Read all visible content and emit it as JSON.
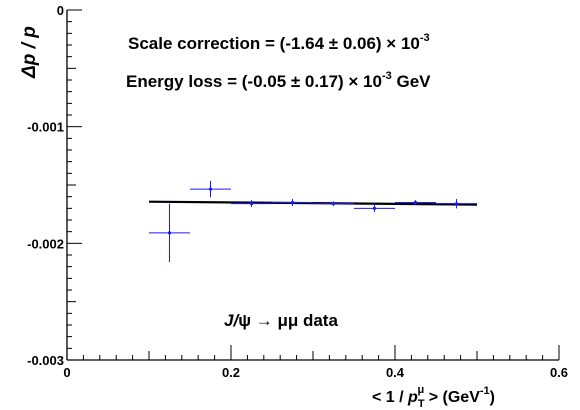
{
  "chart_data": {
    "type": "scatter",
    "ylabel": "Δp / p",
    "xlabel": {
      "prefix": "< 1 / ",
      "var": "p",
      "sub": "T",
      "sup": "μ",
      "suffix": " > (GeV",
      "unit_sup": "-1",
      "close": ")"
    },
    "xlim": [
      0,
      0.6
    ],
    "ylim": [
      -0.003,
      0
    ],
    "x_ticks": [
      0,
      0.2,
      0.4,
      0.6
    ],
    "x_tick_labels": [
      "0",
      "0.2",
      "0.4",
      "0.6"
    ],
    "y_ticks": [
      0,
      -0.001,
      -0.002,
      -0.003
    ],
    "y_tick_labels": [
      "0",
      "-0.001",
      "-0.002",
      "-0.003"
    ],
    "grid": false,
    "points": [
      {
        "x": 0.125,
        "xerr": 0.025,
        "y": -0.00191,
        "yerr": 0.00025
      },
      {
        "x": 0.175,
        "xerr": 0.025,
        "y": -0.001535,
        "yerr": 7e-05
      },
      {
        "x": 0.225,
        "xerr": 0.025,
        "y": -0.00166,
        "yerr": 3e-05
      },
      {
        "x": 0.275,
        "xerr": 0.025,
        "y": -0.00165,
        "yerr": 3e-05
      },
      {
        "x": 0.325,
        "xerr": 0.025,
        "y": -0.00166,
        "yerr": 2e-05
      },
      {
        "x": 0.375,
        "xerr": 0.025,
        "y": -0.0017,
        "yerr": 3e-05
      },
      {
        "x": 0.425,
        "xerr": 0.025,
        "y": -0.00165,
        "yerr": 2e-05
      },
      {
        "x": 0.475,
        "xerr": 0.025,
        "y": -0.00166,
        "yerr": 4e-05
      }
    ],
    "fit_line": {
      "x": [
        0.1,
        0.5
      ],
      "y": [
        -0.001643,
        -0.001668
      ]
    },
    "annotations": {
      "scale": {
        "label": "Scale correction = (-1.64 ± 0.06) × 10",
        "exp": "-3",
        "suffix": ""
      },
      "eloss": {
        "label": "Energy loss = (-0.05 ± 0.17) × 10",
        "exp": "-3",
        "suffix": " GeV"
      },
      "sample": {
        "var": "J/",
        "rest": "ψ → μμ data"
      }
    },
    "colors": {
      "points": "#1a1aff",
      "fit": "#000000",
      "axes": "#000000"
    }
  }
}
